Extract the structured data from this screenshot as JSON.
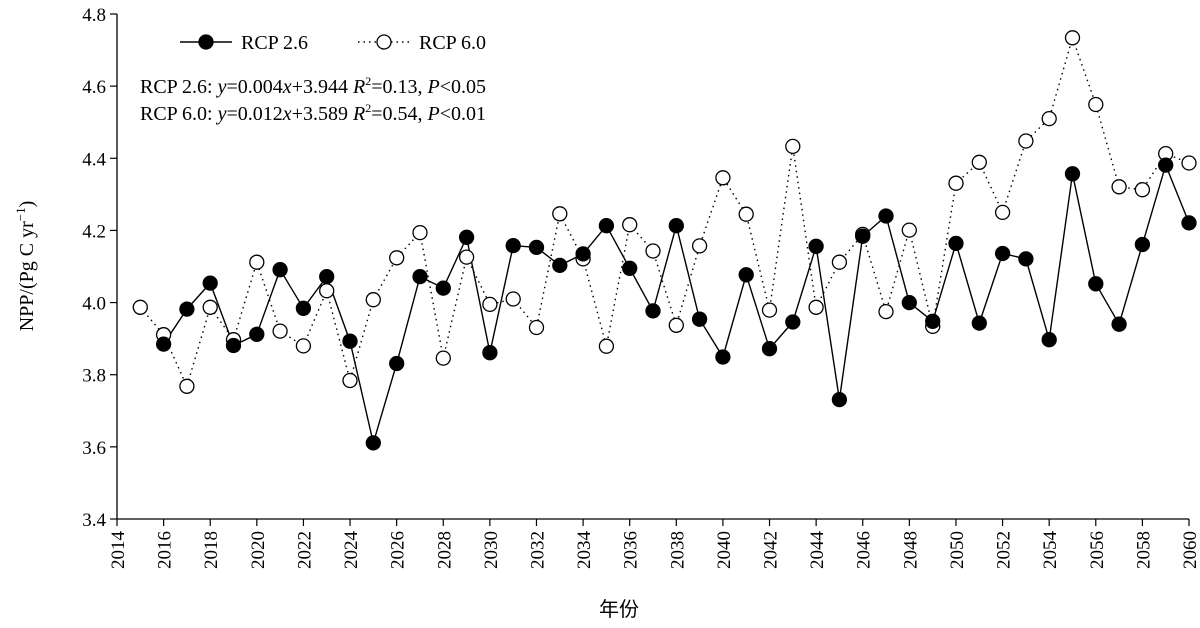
{
  "chart_data": {
    "type": "line",
    "xlabel": "年份",
    "ylabel_main": "NPP/(Pg C yr",
    "ylabel_sup": "−1",
    "ylabel_end": ")",
    "xlim": [
      2014,
      2060
    ],
    "ylim": [
      3.4,
      4.8
    ],
    "x_ticks": [
      2014,
      2016,
      2018,
      2020,
      2022,
      2024,
      2026,
      2028,
      2030,
      2032,
      2034,
      2036,
      2038,
      2040,
      2042,
      2044,
      2046,
      2048,
      2050,
      2052,
      2054,
      2056,
      2058,
      2060
    ],
    "y_ticks": [
      "3.4",
      "3.6",
      "3.8",
      "4.0",
      "4.2",
      "4.4",
      "4.6",
      "4.8"
    ],
    "x": [
      2015,
      2016,
      2017,
      2018,
      2019,
      2020,
      2021,
      2022,
      2023,
      2024,
      2025,
      2026,
      2027,
      2028,
      2029,
      2030,
      2031,
      2032,
      2033,
      2034,
      2035,
      2036,
      2037,
      2038,
      2039,
      2040,
      2041,
      2042,
      2043,
      2044,
      2045,
      2046,
      2047,
      2048,
      2049,
      2050,
      2051,
      2052,
      2053,
      2054,
      2055,
      2056,
      2057,
      2058,
      2059,
      2060
    ],
    "series": [
      {
        "name": "RCP 2.6",
        "style": "solid-filled",
        "values": [
          null,
          3.885,
          3.982,
          4.054,
          3.881,
          3.912,
          4.091,
          3.984,
          4.072,
          3.893,
          3.611,
          3.831,
          4.072,
          4.04,
          4.181,
          3.861,
          4.158,
          4.153,
          4.103,
          4.135,
          4.213,
          4.095,
          3.977,
          4.213,
          3.954,
          3.849,
          4.077,
          3.872,
          3.946,
          4.156,
          3.731,
          4.184,
          4.24,
          4.0,
          3.948,
          4.164,
          3.943,
          4.136,
          4.121,
          3.897,
          4.357,
          4.052,
          3.94,
          4.161,
          4.381,
          4.221
        ]
      },
      {
        "name": "RCP 6.0",
        "style": "dotted-open",
        "values": [
          3.987,
          3.911,
          3.768,
          3.987,
          3.897,
          4.112,
          3.921,
          3.88,
          4.033,
          3.784,
          4.008,
          4.124,
          4.194,
          3.846,
          4.126,
          3.995,
          4.01,
          3.931,
          4.246,
          4.121,
          3.879,
          4.216,
          4.143,
          3.937,
          4.157,
          4.346,
          4.245,
          3.979,
          4.433,
          3.987,
          4.112,
          4.189,
          3.975,
          4.201,
          3.934,
          4.331,
          4.389,
          4.25,
          4.448,
          4.51,
          4.734,
          4.549,
          4.321,
          4.313,
          4.413,
          4.387
        ]
      }
    ],
    "legend_position": "top-left",
    "grid": false
  },
  "annotations": {
    "rcp26_prefix": "RCP 2.6: ",
    "rcp26_y": "y",
    "rcp26_eq1": "=0.004",
    "rcp26_x": "x",
    "rcp26_eq2": "+3.944 ",
    "rcp26_R": "R",
    "rcp26_sup": "2",
    "rcp26_r2": "=0.13, ",
    "rcp26_P": "P",
    "rcp26_p": "<0.05",
    "rcp60_prefix": "RCP 6.0: ",
    "rcp60_y": "y",
    "rcp60_eq1": "=0.012",
    "rcp60_x": "x",
    "rcp60_eq2": "+3.589 ",
    "rcp60_R": "R",
    "rcp60_sup": "2",
    "rcp60_r2": "=0.54, ",
    "rcp60_P": "P",
    "rcp60_p": "<0.01"
  }
}
